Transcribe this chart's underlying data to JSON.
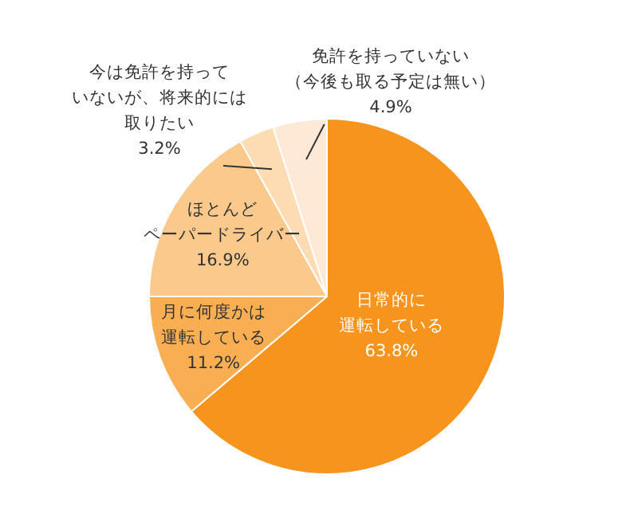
{
  "chart_data": {
    "type": "pie",
    "categories": [
      "日常的に運転している",
      "月に何度かは運転している",
      "ほとんどペーパードライバー",
      "今は免許を持っていないが、将来的には取りたい",
      "免許を持っていない（今後も取る予定は無い）"
    ],
    "values": [
      63.8,
      11.2,
      16.9,
      3.2,
      4.9
    ],
    "value_labels": [
      "63.8%",
      "11.2%",
      "16.9%",
      "3.2%",
      "4.9%"
    ],
    "colors": [
      "#f7941d",
      "#f9ae52",
      "#fbc98b",
      "#fddcb3",
      "#fee9d6"
    ],
    "legend": false
  }
}
